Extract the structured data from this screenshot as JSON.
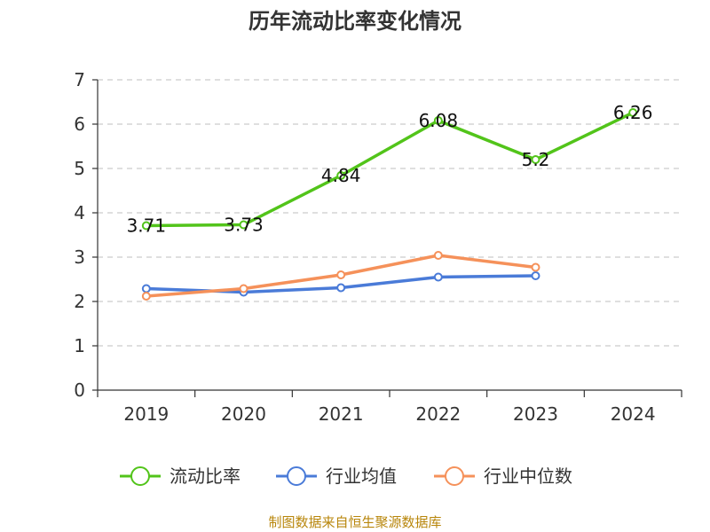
{
  "chart_data": {
    "type": "line",
    "title": "历年流动比率变化情况",
    "categories": [
      "2019",
      "2020",
      "2021",
      "2022",
      "2023",
      "2024"
    ],
    "series": [
      {
        "name": "流动比率",
        "color": "#52c41a",
        "values": [
          3.71,
          3.73,
          4.84,
          6.08,
          5.2,
          6.26
        ],
        "labels": [
          "3.71",
          "3.73",
          "4.84",
          "6.08",
          "5.2",
          "6.26"
        ]
      },
      {
        "name": "行业均值",
        "color": "#4a7bd8",
        "values": [
          2.29,
          2.21,
          2.31,
          2.55,
          2.58,
          null
        ]
      },
      {
        "name": "行业中位数",
        "color": "#f5915a",
        "values": [
          2.12,
          2.29,
          2.6,
          3.04,
          2.77,
          null
        ]
      }
    ],
    "ylim": [
      0,
      7
    ],
    "yticks": [
      "0",
      "1",
      "2",
      "3",
      "4",
      "5",
      "6",
      "7"
    ],
    "grid": true,
    "legend_position": "bottom-center",
    "xlabel": "",
    "ylabel": ""
  },
  "footer": {
    "source": "制图数据来自恒生聚源数据库"
  }
}
